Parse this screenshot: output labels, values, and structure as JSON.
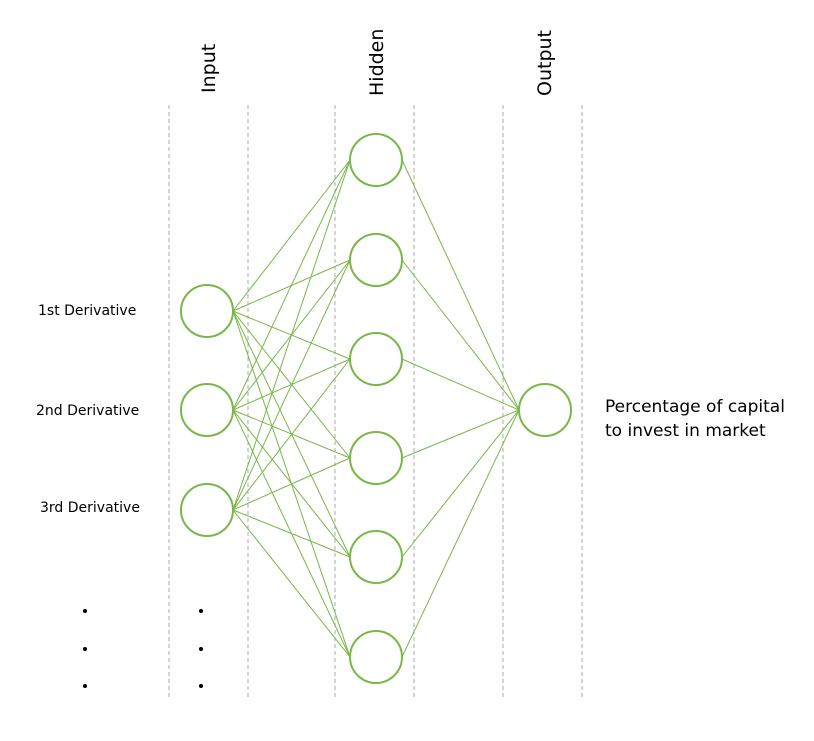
{
  "columns": {
    "input": "Input",
    "hidden": "Hidden",
    "output": "Output"
  },
  "input_labels": [
    "1st Derivative",
    "2nd Derivative",
    "3rd Derivative"
  ],
  "output_label": {
    "line1": "Percentage of capital",
    "line2": "to invest in market"
  },
  "network": {
    "input_nodes": 3,
    "hidden_nodes": 6,
    "output_nodes": 1,
    "continuation_marker": "ellipsis-dots"
  },
  "colors": {
    "node_stroke": "#7ab648",
    "edge_stroke": "#7ab648",
    "guide_line": "#aaaaaa",
    "text": "#000000"
  }
}
